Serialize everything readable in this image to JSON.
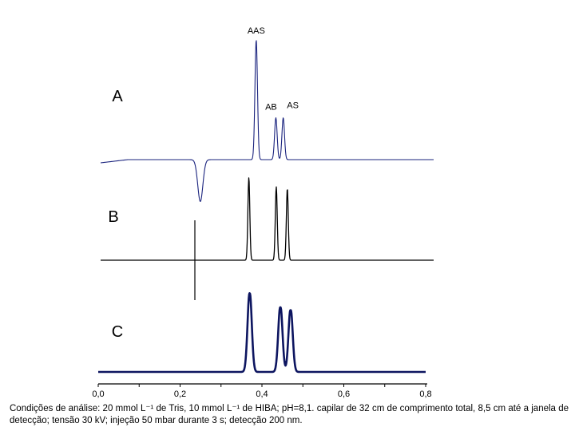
{
  "chart_data": {
    "type": "line",
    "xlim": [
      0,
      0.8
    ],
    "x_ticks": [
      "0,0",
      "0,2",
      "0,4",
      "0,6",
      "0,8"
    ],
    "x_tick_values": [
      0,
      0.2,
      0.4,
      0.6,
      0.8
    ],
    "grid": false,
    "series": [
      {
        "name": "A",
        "color": "#1a237e",
        "peaks": [
          {
            "label": "AAS",
            "x": 0.386,
            "height": 1.0
          },
          {
            "label": "AB",
            "x": 0.434,
            "height": 0.35
          },
          {
            "label": "AS",
            "x": 0.452,
            "height": 0.35
          }
        ],
        "negative_peak": {
          "x": 0.226,
          "depth": 0.35
        }
      },
      {
        "name": "B",
        "color": "#000000",
        "peaks": [
          {
            "x": 0.368,
            "height": 0.9
          },
          {
            "x": 0.435,
            "height": 0.8
          },
          {
            "x": 0.462,
            "height": 0.78
          }
        ]
      },
      {
        "name": "C",
        "color": "#0d1560",
        "peaks": [
          {
            "x": 0.37,
            "height": 0.87
          },
          {
            "x": 0.445,
            "height": 0.72
          },
          {
            "x": 0.47,
            "height": 0.69
          }
        ]
      }
    ],
    "annotations": [
      "AAS",
      "AB",
      "AS"
    ]
  },
  "caption": "Condições de análise: 20 mmol L⁻¹ de Tris, 10 mmol L⁻¹ de HIBA; pH=8,1. capilar de 32 cm de comprimento total, 8,5 cm até a janela de detecção; tensão 30 kV; injeção 50 mbar durante 3 s; detecção 200 nm."
}
